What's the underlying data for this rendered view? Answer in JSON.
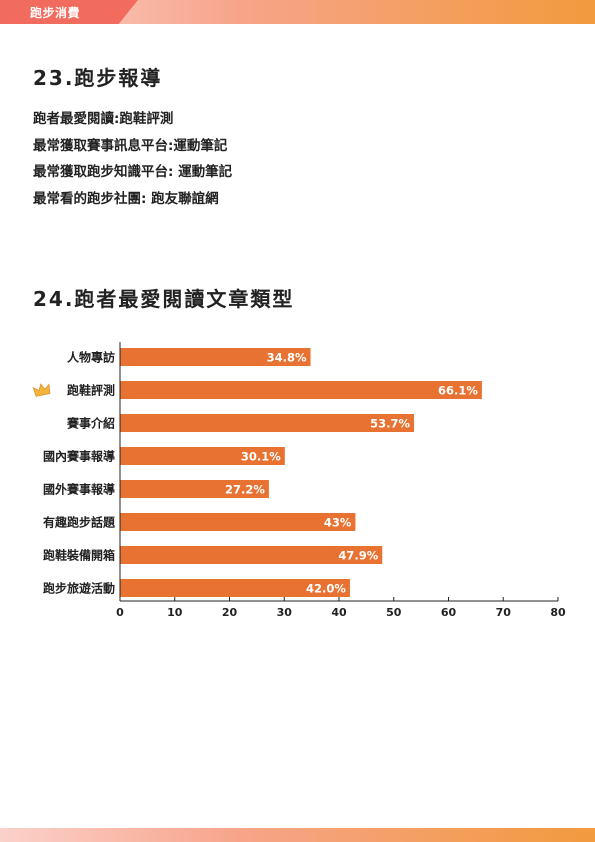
{
  "header": {
    "tab_label": "跑步消費"
  },
  "section23": {
    "title": "23.跑步報導",
    "facts": [
      "跑者最愛閱讀:跑鞋評測",
      "最常獲取賽事訊息平台:運動筆記",
      "最常獲取跑步知識平台: 運動筆記",
      "最常看的跑步社團: 跑友聯誼網"
    ]
  },
  "section24": {
    "title": "24.跑者最愛閱讀文章類型"
  },
  "colors": {
    "bar": "#e87232",
    "accent": "#f26b5f",
    "crown": "#f5b53d"
  },
  "chart_data": {
    "type": "bar",
    "orientation": "horizontal",
    "categories": [
      "人物專訪",
      "跑鞋評測",
      "賽事介紹",
      "國內賽事報導",
      "國外賽事報導",
      "有趣跑步話題",
      "跑鞋裝備開箱",
      "跑步旅遊活動"
    ],
    "values": [
      34.8,
      66.1,
      53.7,
      30.1,
      27.2,
      43,
      47.9,
      42.0
    ],
    "value_labels": [
      "34.8%",
      "66.1%",
      "53.7%",
      "30.1%",
      "27.2%",
      "43%",
      "47.9%",
      "42.0%"
    ],
    "highlight_icon": "crown-icon",
    "highlight_index": 1,
    "xlim": [
      0,
      80
    ],
    "xticks": [
      0,
      10,
      20,
      30,
      40,
      50,
      60,
      70,
      80
    ],
    "grid": false
  }
}
